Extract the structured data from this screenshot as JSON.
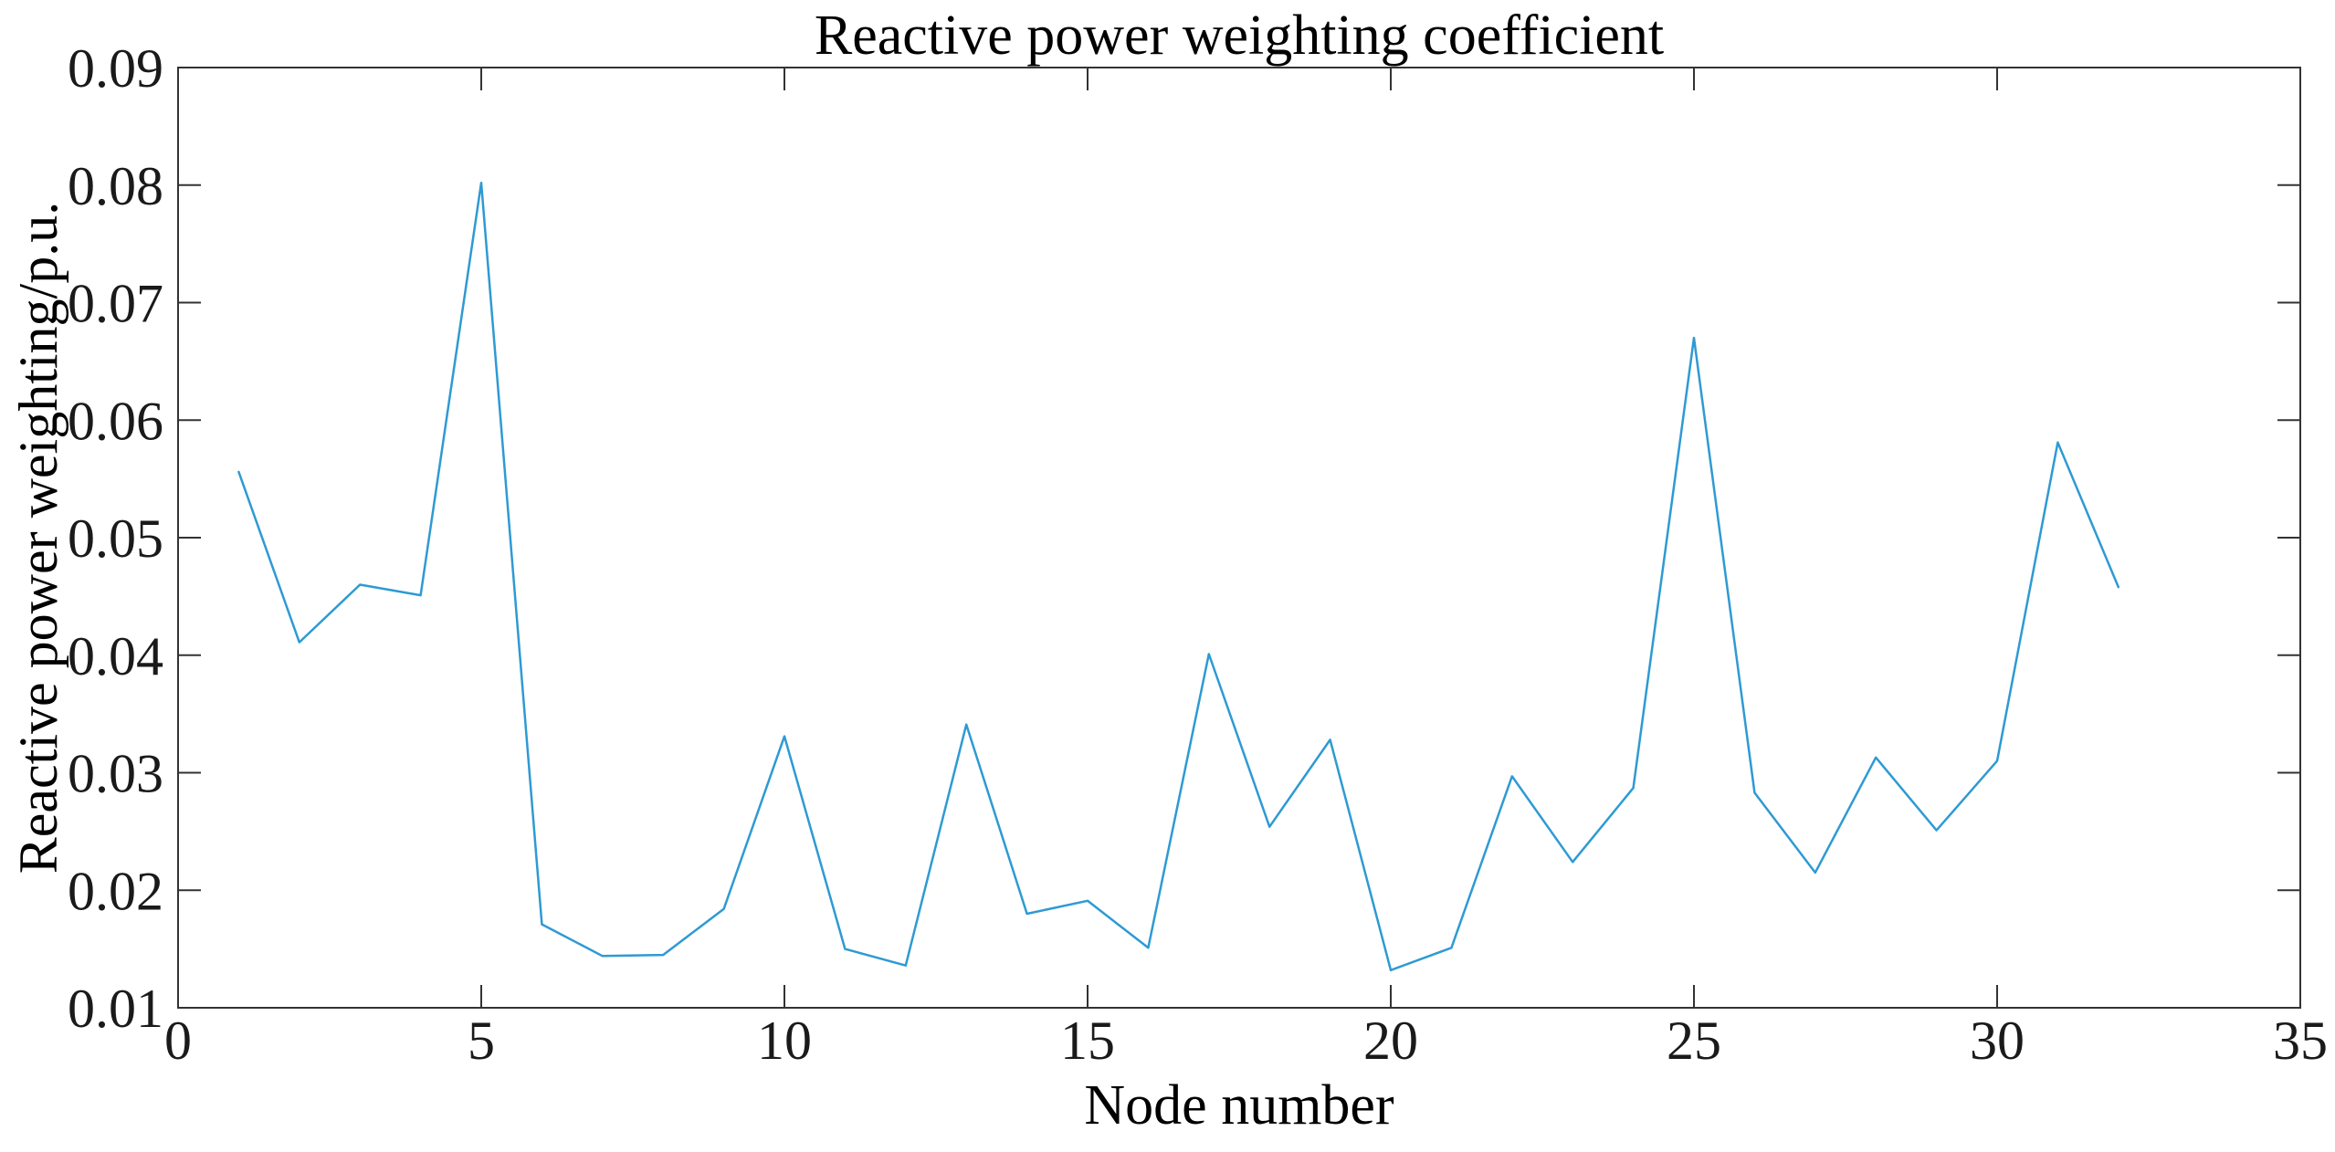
{
  "figure": {
    "background": "#ffffff"
  },
  "chart_data": {
    "type": "line",
    "title": "Reactive power weighting coefficient",
    "xlabel": "Node number",
    "ylabel": "Reactive power weighting/p.u.",
    "x": [
      1,
      2,
      3,
      4,
      5,
      6,
      7,
      8,
      9,
      10,
      11,
      12,
      13,
      14,
      15,
      16,
      17,
      18,
      19,
      20,
      21,
      22,
      23,
      24,
      25,
      26,
      27,
      28,
      29,
      30,
      31,
      32
    ],
    "values": [
      0.0556,
      0.0411,
      0.046,
      0.0451,
      0.0802,
      0.0171,
      0.0144,
      0.0145,
      0.0184,
      0.0331,
      0.015,
      0.0136,
      0.0341,
      0.018,
      0.0191,
      0.0151,
      0.0401,
      0.0254,
      0.0328,
      0.0132,
      0.0151,
      0.0297,
      0.0224,
      0.0287,
      0.067,
      0.0283,
      0.0215,
      0.0313,
      0.0251,
      0.031,
      0.0581,
      0.0458
    ],
    "xlim": [
      0,
      35
    ],
    "ylim": [
      0.01,
      0.09
    ],
    "x_ticks": [
      0,
      5,
      10,
      15,
      20,
      25,
      30,
      35
    ],
    "x_tick_labels": [
      "0",
      "5",
      "10",
      "15",
      "20",
      "25",
      "30",
      "35"
    ],
    "y_ticks": [
      0.01,
      0.02,
      0.03,
      0.04,
      0.05,
      0.06,
      0.07,
      0.08,
      0.09
    ],
    "y_tick_labels": [
      "0.01",
      "0.02",
      "0.03",
      "0.04",
      "0.05",
      "0.06",
      "0.07",
      "0.08",
      "0.09"
    ],
    "grid": false,
    "legend_position": "none",
    "line_color": "#2e9ad3",
    "axis_color": "#333333",
    "tick_label_color": "#1a1a1a"
  }
}
